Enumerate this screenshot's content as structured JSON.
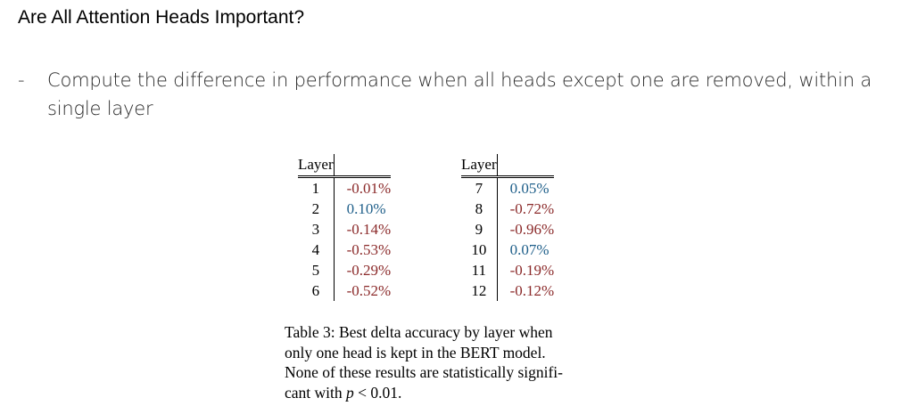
{
  "title": "Are All Attention Heads Important?",
  "bullet": {
    "marker": "-",
    "text": "Compute the difference in performance when all heads except one are removed, within a single layer"
  },
  "table": {
    "layer_header": "Layer",
    "left": [
      {
        "layer": "1",
        "delta": "-0.01%",
        "sign": "neg"
      },
      {
        "layer": "2",
        "delta": "0.10%",
        "sign": "pos"
      },
      {
        "layer": "3",
        "delta": "-0.14%",
        "sign": "neg"
      },
      {
        "layer": "4",
        "delta": "-0.53%",
        "sign": "neg"
      },
      {
        "layer": "5",
        "delta": "-0.29%",
        "sign": "neg"
      },
      {
        "layer": "6",
        "delta": "-0.52%",
        "sign": "neg"
      }
    ],
    "right": [
      {
        "layer": "7",
        "delta": "0.05%",
        "sign": "pos"
      },
      {
        "layer": "8",
        "delta": "-0.72%",
        "sign": "neg"
      },
      {
        "layer": "9",
        "delta": "-0.96%",
        "sign": "neg"
      },
      {
        "layer": "10",
        "delta": "0.07%",
        "sign": "pos"
      },
      {
        "layer": "11",
        "delta": "-0.19%",
        "sign": "neg"
      },
      {
        "layer": "12",
        "delta": "-0.12%",
        "sign": "neg"
      }
    ],
    "colors": {
      "negative": "#8b2a2a",
      "positive": "#1f5f8a"
    }
  },
  "caption": {
    "line1": "Table 3:  Best delta accuracy by layer when",
    "line2": "only one head is kept in the BERT model.",
    "line3": "None of these results are statistically signifi-",
    "line4_prefix": "cant with ",
    "line4_var": "p",
    "line4_suffix": " < 0.01."
  }
}
